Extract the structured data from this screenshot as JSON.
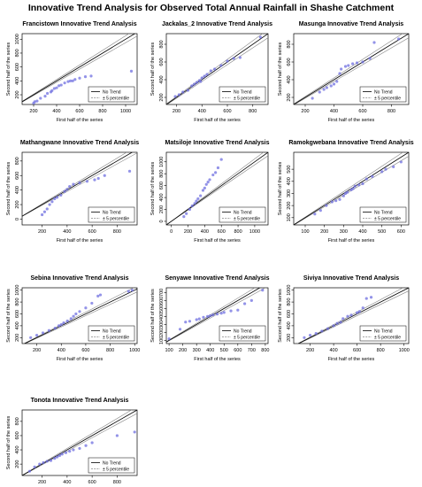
{
  "figure": {
    "title": "Innovative Trend Analysis for Observed Total Annual Rainfall in Shashe Catchment"
  },
  "legend": {
    "no_trend": "No Trend",
    "percentile": "± 5 percentile"
  },
  "colors": {
    "points": "#6f6fe0",
    "line": "#000000",
    "band": "#888888",
    "background": "#ffffff"
  },
  "chart_data": [
    {
      "type": "scatter",
      "title": "Francistown Innovative Trend Analysis",
      "xlabel": "First half of the series",
      "ylabel": "Second half of the series",
      "xlim": [
        100,
        1100
      ],
      "ylim": [
        60,
        1080
      ],
      "xticks": [
        200,
        400,
        600,
        800,
        1000
      ],
      "yticks": [
        200,
        400,
        600,
        800,
        1000
      ],
      "points": [
        [
          200,
          80
        ],
        [
          210,
          100
        ],
        [
          230,
          110
        ],
        [
          260,
          150
        ],
        [
          300,
          180
        ],
        [
          320,
          220
        ],
        [
          350,
          240
        ],
        [
          360,
          260
        ],
        [
          380,
          290
        ],
        [
          400,
          300
        ],
        [
          420,
          330
        ],
        [
          440,
          340
        ],
        [
          470,
          370
        ],
        [
          500,
          390
        ],
        [
          520,
          400
        ],
        [
          540,
          400
        ],
        [
          560,
          420
        ],
        [
          600,
          440
        ],
        [
          650,
          460
        ],
        [
          700,
          470
        ],
        [
          1050,
          540
        ]
      ]
    },
    {
      "type": "scatter",
      "title": "Jackalas_2 Innovative Trend Analysis",
      "xlabel": "First half of the series",
      "ylabel": "Second half of the series",
      "xlim": [
        120,
        920
      ],
      "ylim": [
        120,
        920
      ],
      "xticks": [
        200,
        400,
        600,
        800
      ],
      "yticks": [
        200,
        400,
        600,
        800
      ],
      "points": [
        [
          190,
          210
        ],
        [
          220,
          230
        ],
        [
          250,
          260
        ],
        [
          290,
          280
        ],
        [
          320,
          330
        ],
        [
          340,
          350
        ],
        [
          360,
          370
        ],
        [
          380,
          390
        ],
        [
          390,
          380
        ],
        [
          400,
          420
        ],
        [
          420,
          440
        ],
        [
          440,
          460
        ],
        [
          470,
          500
        ],
        [
          500,
          520
        ],
        [
          550,
          560
        ],
        [
          600,
          610
        ],
        [
          650,
          640
        ],
        [
          700,
          650
        ],
        [
          860,
          880
        ]
      ]
    },
    {
      "type": "scatter",
      "title": "Masunga Innovative Trend Analysis",
      "xlabel": "First half of the series",
      "ylabel": "Second half of the series",
      "xlim": [
        120,
        920
      ],
      "ylim": [
        120,
        920
      ],
      "xticks": [
        200,
        400,
        600,
        800
      ],
      "yticks": [
        200,
        400,
        600,
        800
      ],
      "points": [
        [
          250,
          190
        ],
        [
          300,
          260
        ],
        [
          330,
          290
        ],
        [
          350,
          310
        ],
        [
          380,
          330
        ],
        [
          400,
          350
        ],
        [
          420,
          380
        ],
        [
          440,
          470
        ],
        [
          450,
          520
        ],
        [
          480,
          550
        ],
        [
          500,
          560
        ],
        [
          530,
          580
        ],
        [
          560,
          590
        ],
        [
          600,
          600
        ],
        [
          650,
          640
        ],
        [
          680,
          820
        ],
        [
          850,
          860
        ]
      ]
    },
    {
      "type": "scatter",
      "title": "Mathangwane Innovative Trend Analysis",
      "xlabel": "First half of the series",
      "ylabel": "Second half of the series",
      "xlim": [
        40,
        960
      ],
      "ylim": [
        -80,
        920
      ],
      "xticks": [
        200,
        400,
        600,
        800
      ],
      "yticks": [
        0,
        200,
        400,
        600,
        800
      ],
      "points": [
        [
          200,
          60
        ],
        [
          220,
          100
        ],
        [
          240,
          140
        ],
        [
          260,
          200
        ],
        [
          280,
          240
        ],
        [
          300,
          280
        ],
        [
          320,
          300
        ],
        [
          350,
          330
        ],
        [
          380,
          380
        ],
        [
          400,
          410
        ],
        [
          420,
          450
        ],
        [
          450,
          480
        ],
        [
          500,
          500
        ],
        [
          560,
          520
        ],
        [
          620,
          540
        ],
        [
          650,
          560
        ],
        [
          700,
          600
        ],
        [
          900,
          660
        ]
      ]
    },
    {
      "type": "scatter",
      "title": "Matsiloje Innovative Trend Analysis",
      "xlabel": "First half of the series",
      "ylabel": "Second half of the series",
      "xlim": [
        -60,
        1160
      ],
      "ylim": [
        -60,
        1160
      ],
      "xticks": [
        0,
        200,
        400,
        600,
        800,
        1000
      ],
      "yticks": [
        0,
        200,
        400,
        600,
        800,
        1000
      ],
      "points": [
        [
          150,
          80
        ],
        [
          180,
          130
        ],
        [
          220,
          200
        ],
        [
          250,
          260
        ],
        [
          280,
          300
        ],
        [
          300,
          340
        ],
        [
          320,
          380
        ],
        [
          350,
          430
        ],
        [
          380,
          520
        ],
        [
          400,
          560
        ],
        [
          420,
          620
        ],
        [
          440,
          660
        ],
        [
          460,
          700
        ],
        [
          500,
          780
        ],
        [
          530,
          820
        ],
        [
          560,
          900
        ],
        [
          600,
          1040
        ]
      ]
    },
    {
      "type": "scatter",
      "title": "Ramokgwebana Innovative Trend Analysis",
      "xlabel": "First half of the series",
      "ylabel": "Second half of the series",
      "xlim": [
        40,
        640
      ],
      "ylim": [
        40,
        640
      ],
      "xticks": [
        100,
        200,
        300,
        400,
        500,
        600
      ],
      "yticks": [
        100,
        200,
        300,
        400,
        500
      ],
      "points": [
        [
          150,
          130
        ],
        [
          180,
          160
        ],
        [
          210,
          200
        ],
        [
          240,
          230
        ],
        [
          260,
          240
        ],
        [
          280,
          250
        ],
        [
          300,
          280
        ],
        [
          310,
          300
        ],
        [
          320,
          310
        ],
        [
          340,
          330
        ],
        [
          350,
          340
        ],
        [
          360,
          360
        ],
        [
          380,
          370
        ],
        [
          400,
          380
        ],
        [
          420,
          420
        ],
        [
          450,
          440
        ],
        [
          500,
          480
        ],
        [
          520,
          500
        ],
        [
          560,
          520
        ],
        [
          600,
          560
        ]
      ]
    },
    {
      "type": "scatter",
      "title": "Sebina Innovative Trend Analysis",
      "xlabel": "First half of the series",
      "ylabel": "Second half of the series",
      "xlim": [
        80,
        1020
      ],
      "ylim": [
        100,
        1040
      ],
      "xticks": [
        200,
        400,
        600,
        800,
        1000
      ],
      "yticks": [
        200,
        400,
        600,
        800,
        1000
      ],
      "points": [
        [
          150,
          200
        ],
        [
          200,
          240
        ],
        [
          250,
          280
        ],
        [
          300,
          320
        ],
        [
          350,
          360
        ],
        [
          380,
          400
        ],
        [
          400,
          420
        ],
        [
          420,
          450
        ],
        [
          450,
          480
        ],
        [
          480,
          520
        ],
        [
          500,
          560
        ],
        [
          520,
          600
        ],
        [
          550,
          640
        ],
        [
          600,
          700
        ],
        [
          650,
          780
        ],
        [
          700,
          900
        ],
        [
          720,
          920
        ],
        [
          950,
          980
        ],
        [
          980,
          1000
        ]
      ]
    },
    {
      "type": "scatter",
      "title": "Senyawe Innovative Trend Analysis",
      "xlabel": "First half of the series",
      "ylabel": "Second half of the series",
      "xlim": [
        80,
        820
      ],
      "ylim": [
        60,
        760
      ],
      "xticks": [
        100,
        200,
        300,
        400,
        500,
        600,
        700,
        800
      ],
      "yticks": [
        100,
        200,
        300,
        400,
        500,
        600,
        700
      ],
      "points": [
        [
          100,
          120
        ],
        [
          180,
          240
        ],
        [
          220,
          330
        ],
        [
          250,
          340
        ],
        [
          300,
          360
        ],
        [
          320,
          370
        ],
        [
          350,
          390
        ],
        [
          380,
          400
        ],
        [
          400,
          410
        ],
        [
          420,
          420
        ],
        [
          450,
          430
        ],
        [
          480,
          440
        ],
        [
          500,
          450
        ],
        [
          550,
          470
        ],
        [
          600,
          480
        ],
        [
          650,
          560
        ],
        [
          700,
          600
        ],
        [
          780,
          730
        ]
      ]
    },
    {
      "type": "scatter",
      "title": "Siviya Innovative Trend Analysis",
      "xlabel": "First half of the series",
      "ylabel": "Second half of the series",
      "xlim": [
        60,
        1040
      ],
      "ylim": [
        100,
        1040
      ],
      "xticks": [
        200,
        400,
        600,
        800,
        1000
      ],
      "yticks": [
        200,
        400,
        600,
        800,
        1000
      ],
      "points": [
        [
          150,
          200
        ],
        [
          200,
          240
        ],
        [
          250,
          270
        ],
        [
          300,
          310
        ],
        [
          350,
          350
        ],
        [
          400,
          400
        ],
        [
          430,
          440
        ],
        [
          460,
          460
        ],
        [
          480,
          520
        ],
        [
          520,
          560
        ],
        [
          550,
          580
        ],
        [
          600,
          620
        ],
        [
          620,
          640
        ],
        [
          650,
          700
        ],
        [
          680,
          860
        ],
        [
          720,
          880
        ]
      ]
    },
    {
      "type": "scatter",
      "title": "Tonota Innovative Trend Analysis",
      "xlabel": "First half of the series",
      "ylabel": "Second half of the series",
      "xlim": [
        40,
        960
      ],
      "ylim": [
        40,
        960
      ],
      "xticks": [
        200,
        400,
        600,
        800
      ],
      "yticks": [
        200,
        400,
        600,
        800
      ],
      "points": [
        [
          100,
          100
        ],
        [
          140,
          160
        ],
        [
          180,
          200
        ],
        [
          210,
          220
        ],
        [
          240,
          240
        ],
        [
          270,
          250
        ],
        [
          300,
          280
        ],
        [
          320,
          300
        ],
        [
          340,
          320
        ],
        [
          360,
          340
        ],
        [
          390,
          360
        ],
        [
          420,
          380
        ],
        [
          450,
          400
        ],
        [
          500,
          420
        ],
        [
          550,
          460
        ],
        [
          600,
          500
        ],
        [
          800,
          600
        ],
        [
          940,
          650
        ]
      ]
    }
  ]
}
